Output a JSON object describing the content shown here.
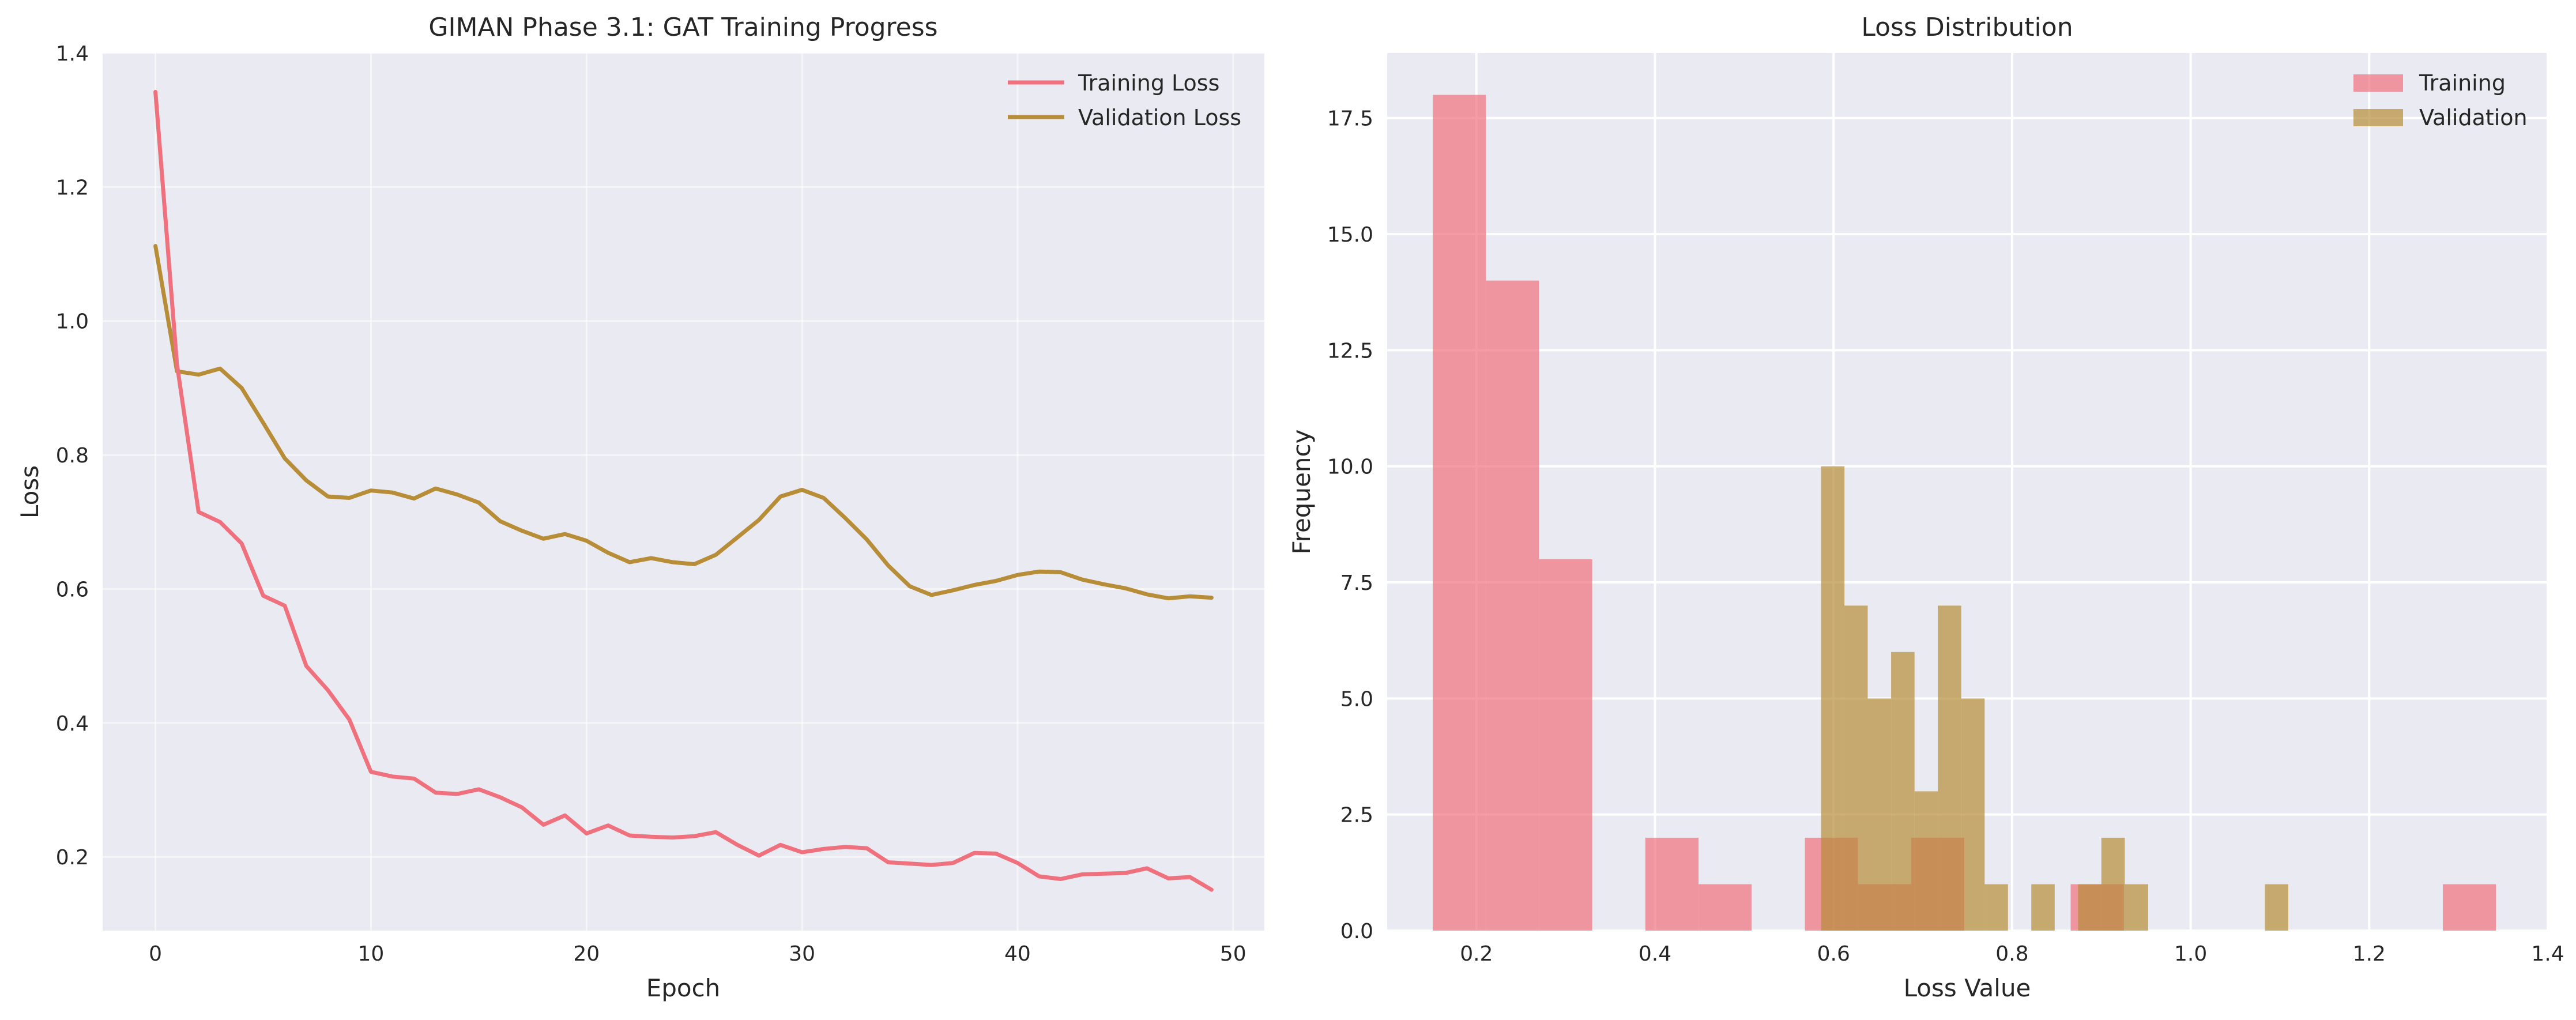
{
  "chart_data": [
    {
      "type": "line",
      "title": "GIMAN Phase 3.1: GAT Training Progress",
      "xlabel": "Epoch",
      "ylabel": "Loss",
      "xlim": [
        -2.45,
        51.45
      ],
      "ylim": [
        0.09,
        1.4
      ],
      "xticks": [
        "0",
        "10",
        "20",
        "30",
        "40",
        "50"
      ],
      "yticks": [
        "0.2",
        "0.4",
        "0.6",
        "0.8",
        "1.0",
        "1.2",
        "1.4"
      ],
      "grid": true,
      "legend_position": "top-right",
      "x": [
        0,
        1,
        2,
        3,
        4,
        5,
        6,
        7,
        8,
        9,
        10,
        11,
        12,
        13,
        14,
        15,
        16,
        17,
        18,
        19,
        20,
        21,
        22,
        23,
        24,
        25,
        26,
        27,
        28,
        29,
        30,
        31,
        32,
        33,
        34,
        35,
        36,
        37,
        38,
        39,
        40,
        41,
        42,
        43,
        44,
        45,
        46,
        47,
        48,
        49
      ],
      "series": [
        {
          "name": "Training Loss",
          "color": "#f0717e",
          "values": [
            1.342,
            0.935,
            0.715,
            0.7,
            0.668,
            0.59,
            0.575,
            0.485,
            0.449,
            0.405,
            0.327,
            0.32,
            0.317,
            0.296,
            0.294,
            0.301,
            0.289,
            0.274,
            0.248,
            0.262,
            0.235,
            0.247,
            0.232,
            0.23,
            0.229,
            0.231,
            0.237,
            0.218,
            0.202,
            0.218,
            0.207,
            0.212,
            0.215,
            0.213,
            0.192,
            0.19,
            0.188,
            0.191,
            0.206,
            0.205,
            0.191,
            0.171,
            0.167,
            0.174,
            0.175,
            0.176,
            0.183,
            0.168,
            0.17,
            0.151
          ]
        },
        {
          "name": "Validation Loss",
          "color": "#b78d37",
          "values": [
            1.112,
            0.925,
            0.92,
            0.929,
            0.9,
            0.848,
            0.795,
            0.762,
            0.738,
            0.736,
            0.747,
            0.744,
            0.735,
            0.75,
            0.741,
            0.729,
            0.701,
            0.687,
            0.675,
            0.682,
            0.672,
            0.654,
            0.64,
            0.646,
            0.64,
            0.637,
            0.651,
            0.677,
            0.703,
            0.738,
            0.748,
            0.736,
            0.706,
            0.674,
            0.635,
            0.604,
            0.591,
            0.598,
            0.606,
            0.612,
            0.621,
            0.626,
            0.625,
            0.614,
            0.607,
            0.601,
            0.592,
            0.586,
            0.589,
            0.587
          ]
        }
      ]
    },
    {
      "type": "histogram",
      "title": "Loss Distribution",
      "xlabel": "Loss Value",
      "ylabel": "Frequency",
      "xlim": [
        0.1,
        1.4
      ],
      "ylim": [
        0,
        18.9
      ],
      "xticks": [
        "0.2",
        "0.4",
        "0.6",
        "0.8",
        "1.0",
        "1.2",
        "1.4"
      ],
      "yticks": [
        "0.0",
        "2.5",
        "5.0",
        "7.5",
        "10.0",
        "12.5",
        "15.0",
        "17.5"
      ],
      "grid": true,
      "legend_position": "top-right",
      "series": [
        {
          "name": "Training",
          "color": "#f0717e",
          "alpha": 0.7,
          "bins": [
            {
              "x0": 0.151,
              "x1": 0.2106,
              "count": 18
            },
            {
              "x0": 0.2106,
              "x1": 0.2701,
              "count": 14
            },
            {
              "x0": 0.2701,
              "x1": 0.3297,
              "count": 8
            },
            {
              "x0": 0.3892,
              "x1": 0.4488,
              "count": 2
            },
            {
              "x0": 0.4488,
              "x1": 0.5083,
              "count": 1
            },
            {
              "x0": 0.5679,
              "x1": 0.6274,
              "count": 2
            },
            {
              "x0": 0.6274,
              "x1": 0.687,
              "count": 1
            },
            {
              "x0": 0.687,
              "x1": 0.7465,
              "count": 2
            },
            {
              "x0": 0.8656,
              "x1": 0.9252,
              "count": 1
            },
            {
              "x0": 1.2825,
              "x1": 1.342,
              "count": 1
            }
          ]
        },
        {
          "name": "Validation",
          "color": "#b78d37",
          "alpha": 0.7,
          "bins": [
            {
              "x0": 0.586,
              "x1": 0.6122,
              "count": 10
            },
            {
              "x0": 0.6122,
              "x1": 0.6383,
              "count": 7
            },
            {
              "x0": 0.6383,
              "x1": 0.6645,
              "count": 5
            },
            {
              "x0": 0.6645,
              "x1": 0.6907,
              "count": 6
            },
            {
              "x0": 0.6907,
              "x1": 0.7168,
              "count": 3
            },
            {
              "x0": 0.7168,
              "x1": 0.743,
              "count": 7
            },
            {
              "x0": 0.743,
              "x1": 0.7692,
              "count": 5
            },
            {
              "x0": 0.7692,
              "x1": 0.7954,
              "count": 1
            },
            {
              "x0": 0.8215,
              "x1": 0.8477,
              "count": 1
            },
            {
              "x0": 0.8739,
              "x1": 0.9,
              "count": 1
            },
            {
              "x0": 0.9,
              "x1": 0.9262,
              "count": 2
            },
            {
              "x0": 0.9262,
              "x1": 0.9524,
              "count": 1
            },
            {
              "x0": 1.0832,
              "x1": 1.1094,
              "count": 1
            }
          ]
        }
      ]
    }
  ]
}
